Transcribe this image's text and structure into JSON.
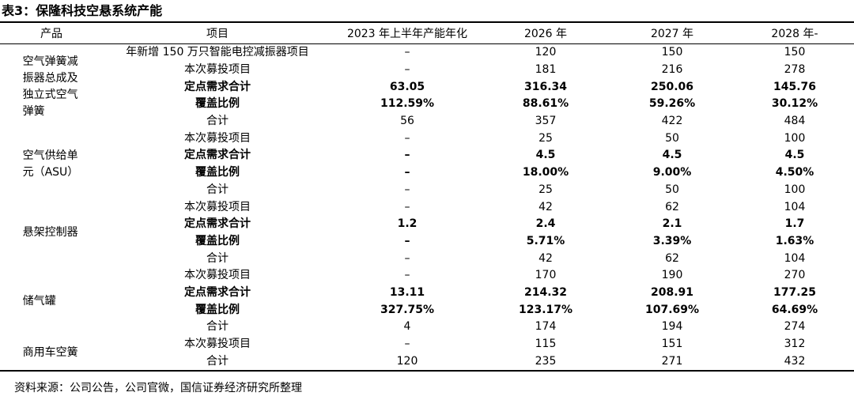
{
  "title": "表3：保隆科技空悬系统产能",
  "table": {
    "header": [
      "产品",
      "项目",
      "2023 年上半年产能年化",
      "2026 年",
      "2027 年",
      "2028 年-"
    ],
    "groups": [
      {
        "product": "空气弹簧减振器总成及独立式空气弹簧",
        "rows": [
          {
            "cells": [
              "年新增 150 万只智能电控减振器项目",
              "–",
              "120",
              "150",
              "150"
            ]
          },
          {
            "cells": [
              "本次募投项目",
              "–",
              "181",
              "216",
              "278"
            ]
          },
          {
            "cells": [
              "定点需求合计",
              "63.05",
              "316.34",
              "250.06",
              "145.76"
            ],
            "bold": true
          },
          {
            "cells": [
              "覆盖比例",
              "112.59%",
              "88.61%",
              "59.26%",
              "30.12%"
            ],
            "bold": true
          },
          {
            "cells": [
              "合计",
              "56",
              "357",
              "422",
              "484"
            ]
          }
        ]
      },
      {
        "product": "空气供给单元（ASU）",
        "rows": [
          {
            "cells": [
              "本次募投项目",
              "–",
              "25",
              "50",
              "100"
            ]
          },
          {
            "cells": [
              "定点需求合计",
              "–",
              "4.5",
              "4.5",
              "4.5"
            ],
            "bold": true
          },
          {
            "cells": [
              "覆盖比例",
              "–",
              "18.00%",
              "9.00%",
              "4.50%"
            ],
            "bold": true
          },
          {
            "cells": [
              "合计",
              "–",
              "25",
              "50",
              "100"
            ]
          }
        ]
      },
      {
        "product": "悬架控制器",
        "rows": [
          {
            "cells": [
              "本次募投项目",
              "–",
              "42",
              "62",
              "104"
            ]
          },
          {
            "cells": [
              "定点需求合计",
              "1.2",
              "2.4",
              "2.1",
              "1.7"
            ],
            "bold": true
          },
          {
            "cells": [
              "覆盖比例",
              "–",
              "5.71%",
              "3.39%",
              "1.63%"
            ],
            "bold": true
          },
          {
            "cells": [
              "合计",
              "–",
              "42",
              "62",
              "104"
            ]
          }
        ]
      },
      {
        "product": "储气罐",
        "rows": [
          {
            "cells": [
              "本次募投项目",
              "–",
              "170",
              "190",
              "270"
            ]
          },
          {
            "cells": [
              "定点需求合计",
              "13.11",
              "214.32",
              "208.91",
              "177.25"
            ],
            "bold": true
          },
          {
            "cells": [
              "覆盖比例",
              "327.75%",
              "123.17%",
              "107.69%",
              "64.69%"
            ],
            "bold": true
          },
          {
            "cells": [
              "合计",
              "4",
              "174",
              "194",
              "274"
            ]
          }
        ]
      },
      {
        "product": "商用车空簧",
        "rows": [
          {
            "cells": [
              "本次募投项目",
              "–",
              "115",
              "151",
              "312"
            ]
          },
          {
            "cells": [
              "合计",
              "120",
              "235",
              "271",
              "432"
            ]
          }
        ]
      }
    ]
  },
  "source": "资料来源：公司公告，公司官微，国信证券经济研究所整理"
}
